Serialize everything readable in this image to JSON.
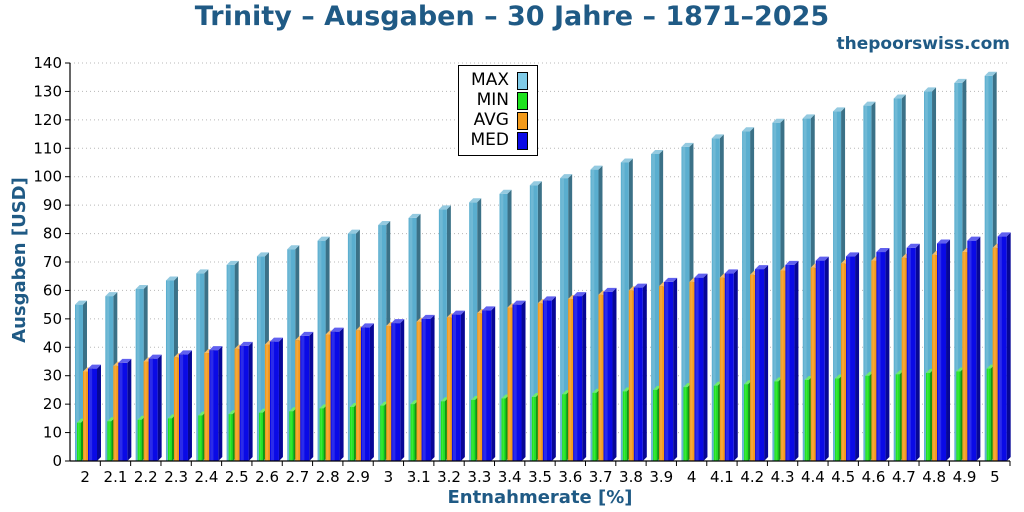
{
  "header": {
    "title": "Trinity – Ausgaben – 30 Jahre – 1871–2025",
    "source": "thepoorswiss.com"
  },
  "chart_data": {
    "type": "bar",
    "title": "Trinity – Ausgaben – 30 Jahre – 1871–2025",
    "xlabel": "Entnahmerate [%]",
    "ylabel": "Ausgaben [USD]",
    "ylim": [
      0,
      140
    ],
    "yticks": [
      0,
      10,
      20,
      30,
      40,
      50,
      60,
      70,
      80,
      90,
      100,
      110,
      120,
      130,
      140
    ],
    "grid": true,
    "legend_position": "top-center",
    "categories": [
      "2",
      "2.1",
      "2.2",
      "2.3",
      "2.4",
      "2.5",
      "2.6",
      "2.7",
      "2.8",
      "2.9",
      "3",
      "3.1",
      "3.2",
      "3.3",
      "3.4",
      "3.5",
      "3.6",
      "3.7",
      "3.8",
      "3.9",
      "4",
      "4.1",
      "4.2",
      "4.3",
      "4.4",
      "4.5",
      "4.6",
      "4.7",
      "4.8",
      "4.9",
      "5"
    ],
    "series": [
      {
        "name": "MAX",
        "color": "#5aaecf",
        "values": [
          55,
          58,
          60.5,
          63.5,
          66,
          69,
          72,
          74.5,
          77.5,
          80,
          83,
          85.5,
          88.5,
          91,
          94,
          97,
          99.5,
          102.5,
          105,
          108,
          110.5,
          113.5,
          116,
          119,
          120.5,
          123,
          125,
          127.5,
          130,
          133,
          135.5
        ]
      },
      {
        "name": "MIN",
        "color": "#1ee21e",
        "values": [
          13.5,
          14,
          14.5,
          15,
          16,
          16.5,
          17,
          17.5,
          18.5,
          19,
          19.5,
          20,
          21,
          21.5,
          22,
          22.5,
          23.5,
          24,
          24.5,
          25,
          26,
          26.5,
          27,
          28,
          28.5,
          29,
          30,
          30.5,
          31,
          31.5,
          32.5
        ]
      },
      {
        "name": "AVG",
        "color": "#f39a1a",
        "values": [
          31.5,
          33.5,
          35,
          36.5,
          38,
          39.5,
          41,
          42.5,
          44.5,
          46,
          47.5,
          49,
          50.5,
          52,
          54,
          55.5,
          57,
          58.5,
          60,
          61.5,
          63,
          64.5,
          65.5,
          67,
          68,
          69.5,
          70.5,
          71.5,
          72.5,
          73.5,
          75
        ]
      },
      {
        "name": "MED",
        "color": "#0a0ae6",
        "values": [
          32.5,
          34.5,
          36,
          37.5,
          39,
          40.5,
          42,
          44,
          45.5,
          47,
          48.5,
          50,
          51.5,
          53,
          55,
          56.5,
          58,
          59.5,
          61,
          63,
          64.5,
          66,
          67.5,
          69,
          70.5,
          72,
          73.5,
          75,
          76.5,
          77.5,
          79
        ]
      }
    ]
  }
}
